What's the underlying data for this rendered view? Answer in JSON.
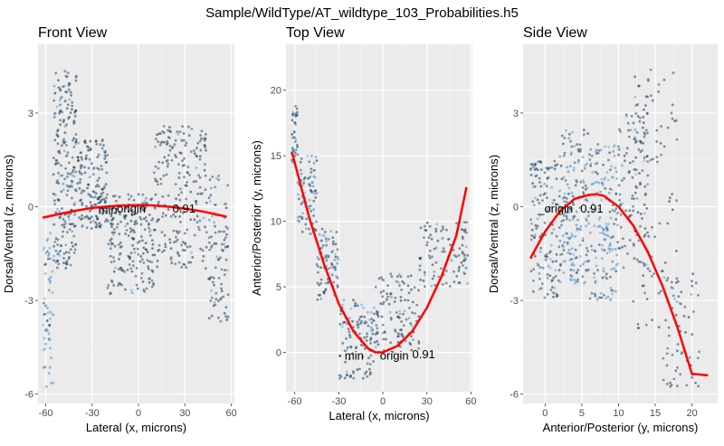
{
  "figure": {
    "title": "Sample/WildType/AT_wildtype_103_Probabilities.h5"
  },
  "colors": {
    "panel_bg": "#ebebeb",
    "grid_major": "#ffffff",
    "grid_minor": "#f5f5f5",
    "fit_line": "#ff0000",
    "point_dark": "#132b43",
    "point_light": "#56b1f7"
  },
  "chart_data": [
    {
      "type": "scatter",
      "title": "Front View",
      "xlabel": "Lateral (x, microns)",
      "ylabel": "Dorsal/Ventral (z, microns)",
      "xlim": [
        -65,
        62
      ],
      "ylim": [
        -6.3,
        5.2
      ],
      "xticks": [
        -60,
        -30,
        0,
        30,
        60
      ],
      "yticks": [
        3,
        0,
        -3,
        -6
      ],
      "xtick_labels": [
        "-60",
        "-30",
        "0",
        "30",
        "60"
      ],
      "ytick_labels": [
        "3",
        "0",
        "-3",
        "-6"
      ],
      "fit_line": {
        "x": [
          -62,
          -50,
          -40,
          -30,
          -20,
          -10,
          0,
          10,
          20,
          30,
          40,
          50,
          57
        ],
        "y": [
          -0.35,
          -0.22,
          -0.12,
          -0.04,
          0.01,
          0.04,
          0.05,
          0.04,
          0.0,
          -0.06,
          -0.14,
          -0.24,
          -0.32
        ]
      },
      "annotations": [
        {
          "text": "min",
          "x": -26,
          "y": -0.08
        },
        {
          "text": "origin",
          "x": -14,
          "y": -0.05
        },
        {
          "text": "0.91",
          "x": 22,
          "y": -0.05
        }
      ],
      "point_bands": [
        {
          "x": [
            -62,
            -55
          ],
          "y": [
            -5.8,
            -0.8
          ],
          "n": 60,
          "light": 0.8
        },
        {
          "x": [
            -55,
            -40
          ],
          "y": [
            -2.0,
            4.4
          ],
          "n": 220,
          "light": 0.15
        },
        {
          "x": [
            -40,
            -20
          ],
          "y": [
            -0.7,
            2.2
          ],
          "n": 160,
          "light": 0.1
        },
        {
          "x": [
            -20,
            10
          ],
          "y": [
            -2.8,
            0.4
          ],
          "n": 200,
          "light": 0.05
        },
        {
          "x": [
            10,
            45
          ],
          "y": [
            -2.0,
            2.6
          ],
          "n": 220,
          "light": 0.05
        },
        {
          "x": [
            45,
            58
          ],
          "y": [
            -3.8,
            1.0
          ],
          "n": 90,
          "light": 0.2
        }
      ]
    },
    {
      "type": "scatter",
      "title": "Top View",
      "xlabel": "Lateral (x, microns)",
      "ylabel": "Anterior/Posterior (y, microns)",
      "xlim": [
        -66,
        61
      ],
      "ylim": [
        -3.0,
        23.5
      ],
      "xticks": [
        -60,
        -30,
        0,
        30,
        60
      ],
      "yticks": [
        0,
        5,
        10,
        15,
        20
      ],
      "xtick_labels": [
        "-60",
        "-30",
        "0",
        "30",
        "60"
      ],
      "ytick_labels": [
        "0",
        "5",
        "10",
        "15",
        "20"
      ],
      "fit_line": {
        "x": [
          -62,
          -50,
          -40,
          -30,
          -20,
          -10,
          -5,
          0,
          10,
          20,
          30,
          40,
          50,
          57
        ],
        "y": [
          15.3,
          10.2,
          6.7,
          3.7,
          1.6,
          0.3,
          0.0,
          0.0,
          0.5,
          1.6,
          3.4,
          5.8,
          8.9,
          12.6
        ]
      },
      "annotations": [
        {
          "text": "min",
          "x": -26,
          "y": -0.2
        },
        {
          "text": "origin",
          "x": -2,
          "y": -0.2
        },
        {
          "text": "0.91",
          "x": 20,
          "y": -0.1
        }
      ],
      "point_bands": [
        {
          "x": [
            -62,
            -58
          ],
          "y": [
            14.5,
            19.0
          ],
          "n": 40,
          "light": 0.3
        },
        {
          "x": [
            -58,
            -45
          ],
          "y": [
            9.0,
            15.0
          ],
          "n": 80,
          "light": 0.35
        },
        {
          "x": [
            -45,
            -30
          ],
          "y": [
            4.0,
            9.5
          ],
          "n": 80,
          "light": 0.3
        },
        {
          "x": [
            -30,
            -5
          ],
          "y": [
            -2.0,
            4.0
          ],
          "n": 120,
          "light": 0.15
        },
        {
          "x": [
            -5,
            25
          ],
          "y": [
            0.0,
            6.0
          ],
          "n": 120,
          "light": 0.1
        },
        {
          "x": [
            25,
            58
          ],
          "y": [
            5.0,
            10.0
          ],
          "n": 100,
          "light": 0.1
        }
      ]
    },
    {
      "type": "scatter",
      "title": "Side View",
      "xlabel": "Anterior/Posterior (y, microns)",
      "ylabel": "Dorsal/Ventral (z, microns)",
      "xlim": [
        -3.0,
        23.5
      ],
      "ylim": [
        -6.3,
        5.2
      ],
      "xticks": [
        0,
        5,
        10,
        15,
        20
      ],
      "yticks": [
        3,
        0,
        -3,
        -6
      ],
      "xtick_labels": [
        "0",
        "5",
        "10",
        "15",
        "20"
      ],
      "ytick_labels": [
        "3",
        "0",
        "-3",
        "-6"
      ],
      "fit_line": {
        "x": [
          -2,
          0,
          2,
          4,
          6,
          7,
          8,
          10,
          12,
          14,
          16,
          18,
          20,
          22.2
        ],
        "y": [
          -1.65,
          -0.8,
          -0.15,
          0.25,
          0.38,
          0.4,
          0.35,
          0.0,
          -0.6,
          -1.45,
          -2.55,
          -3.85,
          -5.35,
          -5.4
        ]
      },
      "annotations": [
        {
          "text": "_origin",
          "x": -1,
          "y": -0.05
        },
        {
          "text": "0.91",
          "x": 4.8,
          "y": -0.05
        }
      ],
      "point_bands": [
        {
          "x": [
            -2,
            2
          ],
          "y": [
            -3.0,
            1.5
          ],
          "n": 140,
          "light": 0.2
        },
        {
          "x": [
            2,
            6
          ],
          "y": [
            -2.5,
            2.5
          ],
          "n": 180,
          "light": 0.55
        },
        {
          "x": [
            6,
            10
          ],
          "y": [
            -3.0,
            2.0
          ],
          "n": 160,
          "light": 0.7
        },
        {
          "x": [
            10,
            14
          ],
          "y": [
            -2.0,
            3.0
          ],
          "n": 100,
          "light": 0.1
        },
        {
          "x": [
            12,
            18
          ],
          "y": [
            -4.0,
            4.5
          ],
          "n": 100,
          "light": 0.05
        },
        {
          "x": [
            16,
            21
          ],
          "y": [
            -5.8,
            -2.0
          ],
          "n": 60,
          "light": 0.1
        }
      ]
    }
  ]
}
